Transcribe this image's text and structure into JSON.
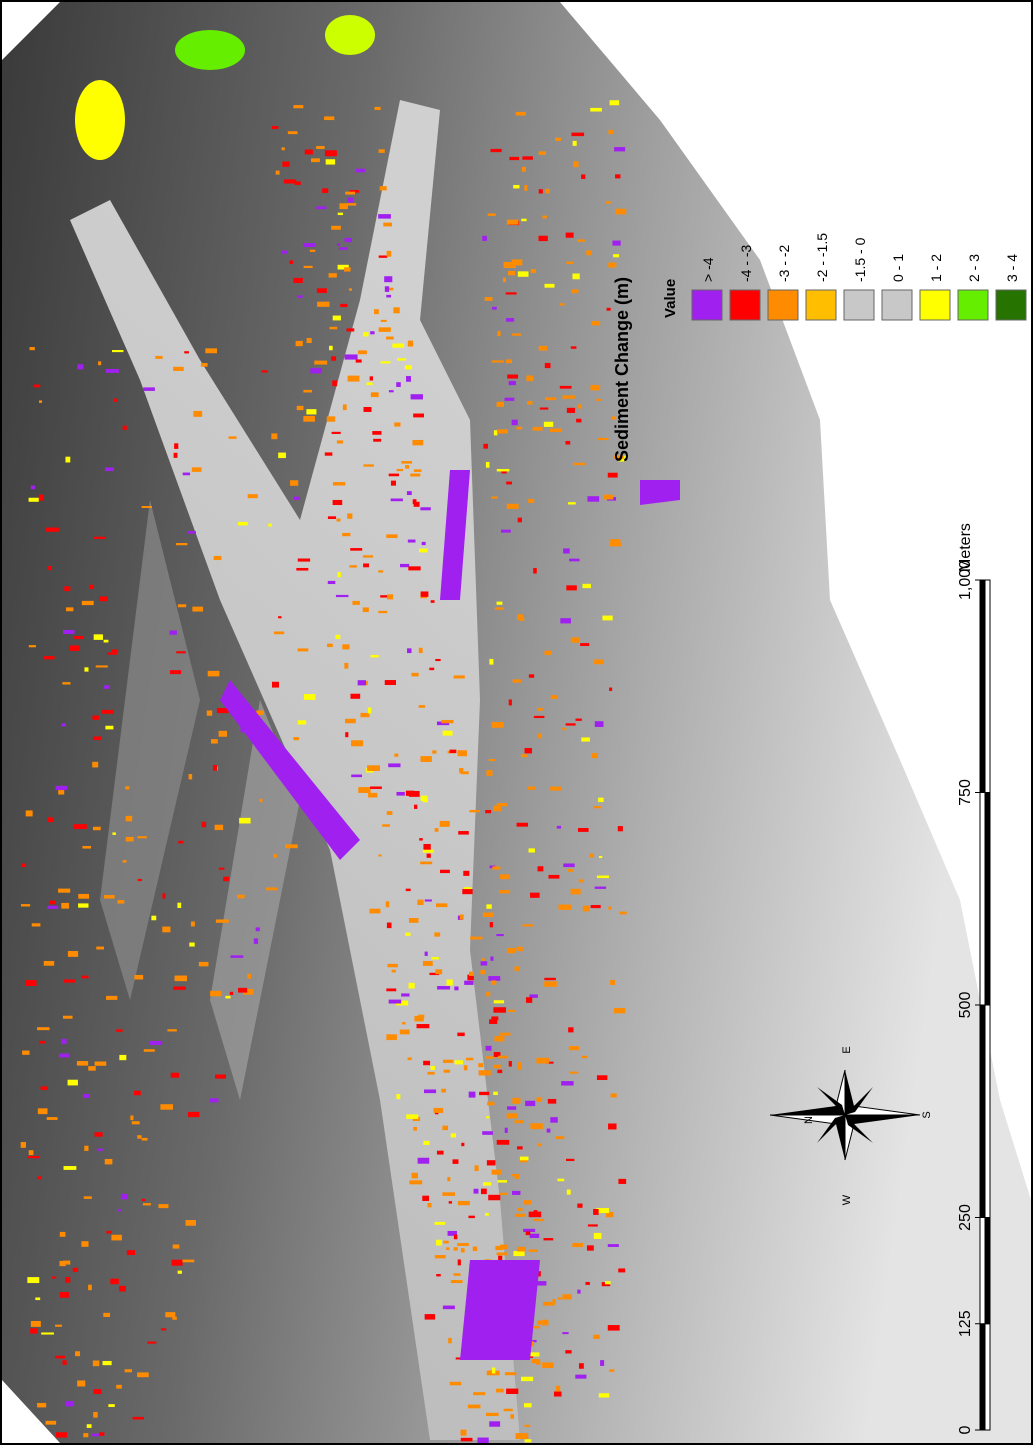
{
  "legend": {
    "title": "Sediment Change (m)",
    "header": "Value",
    "items": [
      {
        "label": "> -4",
        "color": "#a020f0"
      },
      {
        "label": "-4 - -3",
        "color": "#ff0000"
      },
      {
        "label": "-3 - -2",
        "color": "#ff8c00"
      },
      {
        "label": "-2 - -1.5",
        "color": "#ffbf00"
      },
      {
        "label": "-1.5 - 0",
        "color": "#c8c8c8"
      },
      {
        "label": "0 - 1",
        "color": "#c8c8c8"
      },
      {
        "label": "1 - 2",
        "color": "#ffff00"
      },
      {
        "label": "2 - 3",
        "color": "#66ee00"
      },
      {
        "label": "3 - 4",
        "color": "#267300"
      }
    ]
  },
  "scale_bar": {
    "unit": "Meters",
    "ticks": [
      {
        "value": 0,
        "label": "0"
      },
      {
        "value": 125,
        "label": "125"
      },
      {
        "value": 250,
        "label": "250"
      },
      {
        "value": 500,
        "label": "500"
      },
      {
        "value": 750,
        "label": "750"
      },
      {
        "value": 1000,
        "label": "1,000"
      }
    ]
  },
  "compass": {
    "n": "N",
    "e": "E",
    "s": "S",
    "w": "W"
  }
}
